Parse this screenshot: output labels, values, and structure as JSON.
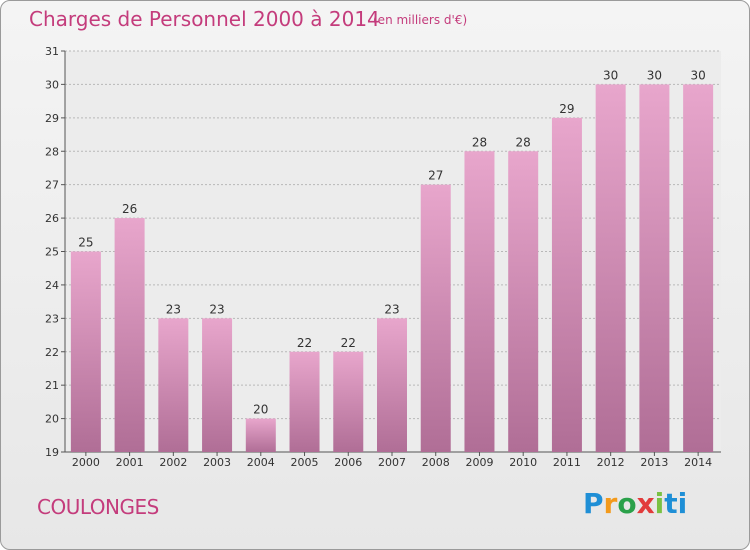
{
  "title": "Charges de Personnel 2000 à 2014",
  "subtitle": "(en milliers d'€)",
  "commune": "COULONGES",
  "logo_text": "Proxiti",
  "colors": {
    "title": "#c43c7c",
    "bar_top": "#e8a6cc",
    "bar_bottom": "#b06e96",
    "axis_text": "#333333"
  },
  "chart_data": {
    "type": "bar",
    "title": "Charges de Personnel 2000 à 2014",
    "subtitle": "(en milliers d'€)",
    "categories": [
      "2000",
      "2001",
      "2002",
      "2003",
      "2004",
      "2005",
      "2006",
      "2007",
      "2008",
      "2009",
      "2010",
      "2011",
      "2012",
      "2013",
      "2014"
    ],
    "values": [
      25,
      26,
      23,
      23,
      20,
      22,
      22,
      23,
      27,
      28,
      28,
      29,
      30,
      30,
      30
    ],
    "ylim": [
      19,
      31
    ],
    "yticks": [
      19,
      20,
      21,
      22,
      23,
      24,
      25,
      26,
      27,
      28,
      29,
      30,
      31
    ],
    "grid": true
  }
}
